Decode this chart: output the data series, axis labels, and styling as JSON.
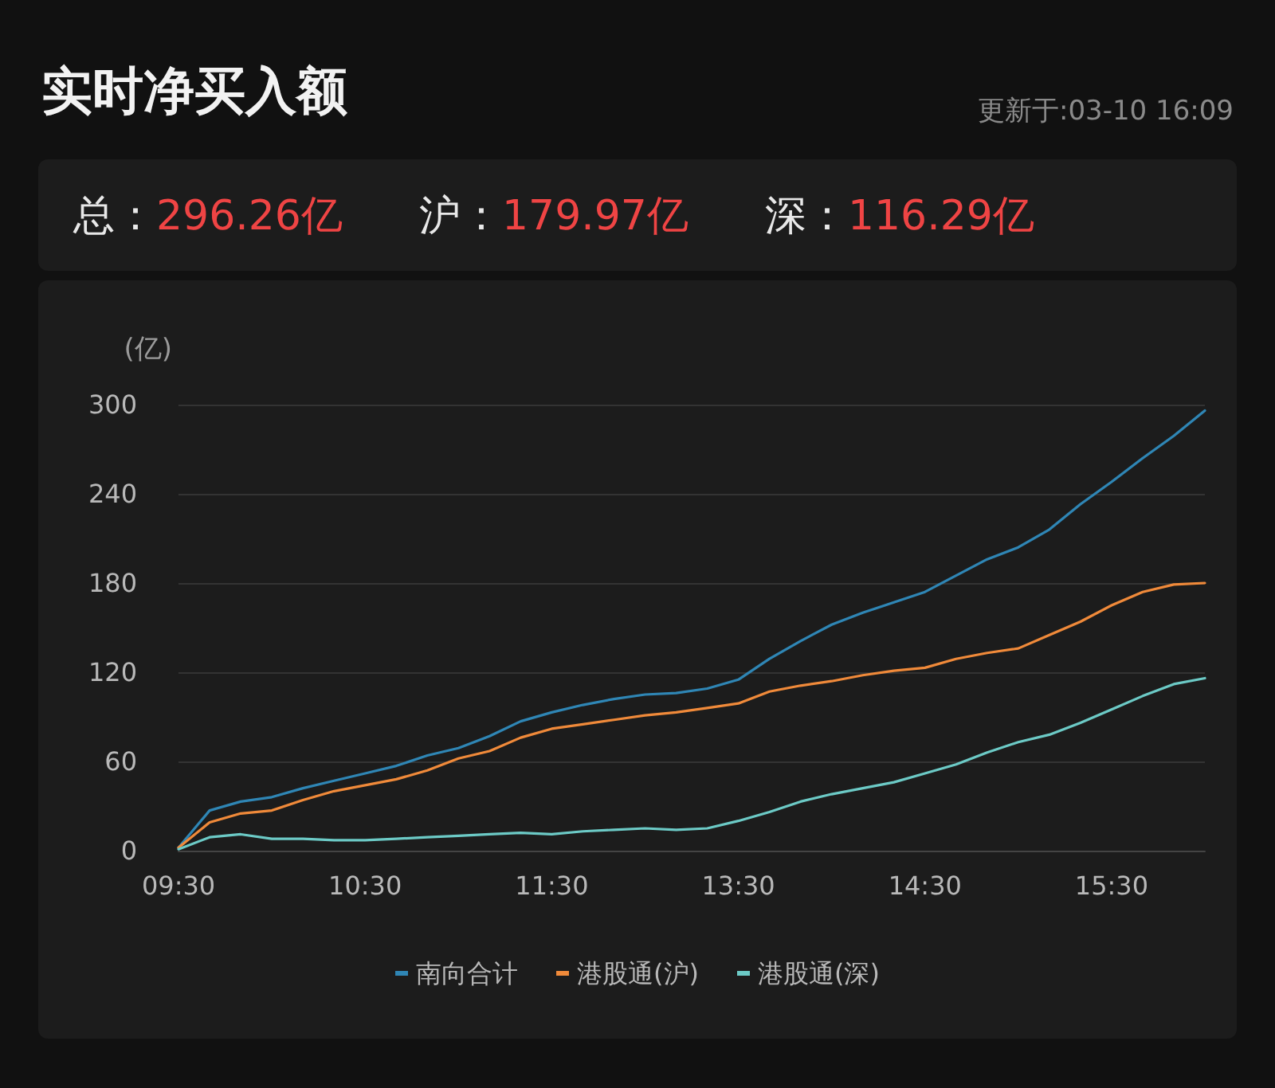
{
  "chart_data": {
    "type": "line",
    "title": "实时净买入额",
    "subtitle": "更新于:03-10 16:09",
    "annotations": [
      "总：296.26亿",
      "沪：179.97亿",
      "深：116.29亿"
    ],
    "ylabel": "(亿)",
    "categories": [
      "09:30",
      null,
      null,
      null,
      null,
      null,
      "10:30",
      null,
      null,
      null,
      null,
      null,
      "11:30",
      null,
      null,
      null,
      null,
      null,
      "13:30",
      null,
      null,
      null,
      null,
      null,
      "14:30",
      null,
      null,
      null,
      null,
      null,
      "15:30",
      null,
      null,
      null
    ],
    "series": [
      {
        "name": "南向合计",
        "color": "#2f86b5",
        "values": [
          2,
          27,
          33,
          36,
          42,
          47,
          52,
          57,
          64,
          69,
          77,
          87,
          93,
          98,
          102,
          105,
          106,
          109,
          115,
          129,
          141,
          152,
          160,
          167,
          174,
          185,
          196,
          204,
          216,
          233,
          248,
          264,
          279,
          296
        ]
      },
      {
        "name": "港股通(沪)",
        "color": "#f08a3a",
        "values": [
          2,
          19,
          25,
          27,
          34,
          40,
          44,
          48,
          54,
          62,
          67,
          76,
          82,
          85,
          88,
          91,
          93,
          96,
          99,
          107,
          111,
          114,
          118,
          121,
          123,
          129,
          133,
          136,
          145,
          154,
          165,
          174,
          179,
          180
        ]
      },
      {
        "name": "港股通(深)",
        "color": "#6ccac6",
        "values": [
          1,
          9,
          11,
          8,
          8,
          7,
          7,
          8,
          9,
          10,
          11,
          12,
          11,
          13,
          14,
          15,
          14,
          15,
          20,
          26,
          33,
          38,
          42,
          46,
          52,
          58,
          66,
          73,
          78,
          86,
          95,
          104,
          112,
          116
        ]
      }
    ],
    "ylim": [
      0,
      300
    ],
    "yticks": [
      0,
      60,
      120,
      180,
      240,
      300
    ],
    "grid": "y",
    "legend": "bottom",
    "marker": "none",
    "line_style": "solid"
  }
}
